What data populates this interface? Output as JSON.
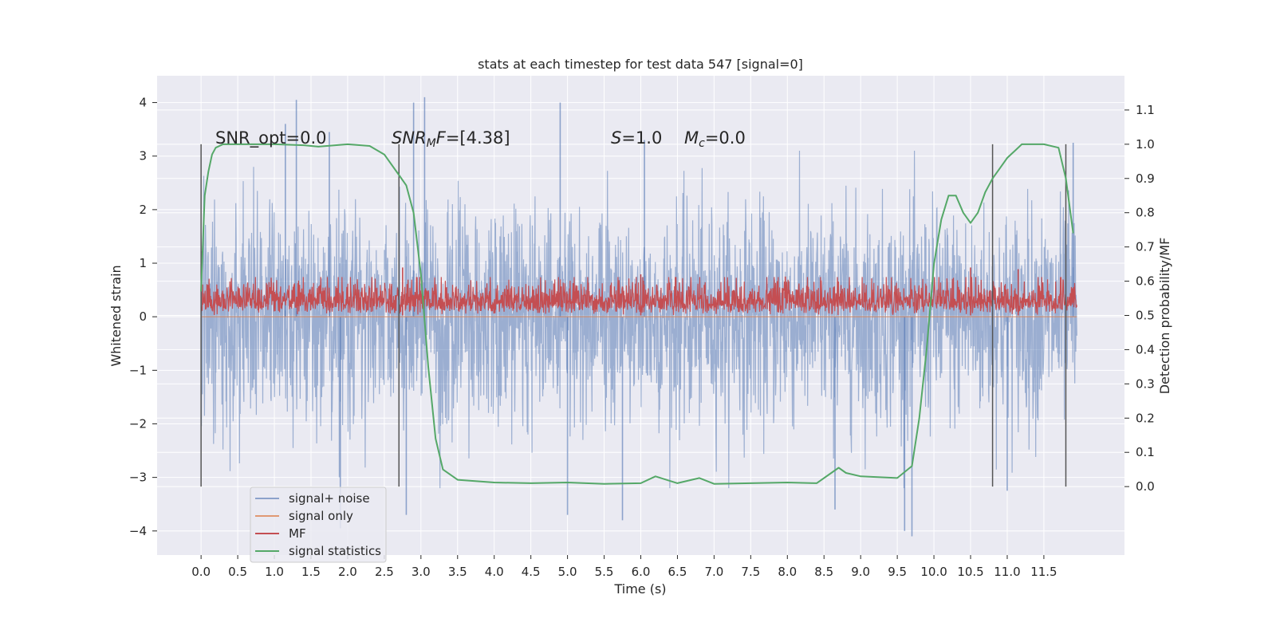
{
  "chart_data": {
    "type": "line",
    "title": "stats at each timestep for test data 547 [signal=0]",
    "xlabel": "Time (s)",
    "ylabel": "Whitened strain",
    "ylabel_right": "Detection probability/MF",
    "xlim": [
      -0.6,
      12.6
    ],
    "ylim": [
      -4.45,
      4.5
    ],
    "ylim_right": [
      -0.2,
      1.2
    ],
    "x_ticks": [
      0.0,
      0.5,
      1.0,
      1.5,
      2.0,
      2.5,
      3.0,
      3.5,
      4.0,
      4.5,
      5.0,
      5.5,
      6.0,
      6.5,
      7.0,
      7.5,
      8.0,
      8.5,
      9.0,
      9.5,
      10.0,
      10.5,
      11.0,
      11.5
    ],
    "x_tick_labels": [
      "0.0",
      "0.5",
      "1.0",
      "1.5",
      "2.0",
      "2.5",
      "3.0",
      "3.5",
      "4.0",
      "4.5",
      "5.0",
      "5.5",
      "6.0",
      "6.5",
      "7.0",
      "7.5",
      "8.0",
      "8.5",
      "9.0",
      "9.5",
      "10.0",
      "10.5",
      "11.0",
      "11.5"
    ],
    "y_ticks": [
      -4,
      -3,
      -2,
      -1,
      0,
      1,
      2,
      3,
      4
    ],
    "y_tick_labels": [
      "−4",
      "−3",
      "−2",
      "−1",
      "0",
      "1",
      "2",
      "3",
      "4"
    ],
    "y_right_ticks": [
      0.0,
      0.1,
      0.2,
      0.3,
      0.4,
      0.5,
      0.6,
      0.7,
      0.8,
      0.9,
      1.0,
      1.1
    ],
    "y_right_tick_labels": [
      "0.0",
      "0.1",
      "0.2",
      "0.3",
      "0.4",
      "0.5",
      "0.6",
      "0.7",
      "0.8",
      "0.9",
      "1.0",
      "1.1"
    ],
    "grid": true,
    "legend_position": "lower-left",
    "series": [
      {
        "name": "signal+ noise",
        "color": "#4c72b0",
        "axis": "left",
        "x_range": [
          0.0,
          11.95
        ],
        "typical_range": [
          -1.9,
          1.9
        ],
        "spikes": [
          {
            "x": 1.3,
            "y": 4.05
          },
          {
            "x": 2.9,
            "y": 4.0
          },
          {
            "x": 3.05,
            "y": 4.1
          },
          {
            "x": 4.9,
            "y": 4.0
          },
          {
            "x": 1.15,
            "y": 3.6
          },
          {
            "x": 1.75,
            "y": 3.45
          },
          {
            "x": 6.05,
            "y": 3.3
          },
          {
            "x": 11.9,
            "y": 3.25
          },
          {
            "x": 9.7,
            "y": -4.1
          },
          {
            "x": 9.6,
            "y": -4.0
          },
          {
            "x": 5.75,
            "y": -3.8
          },
          {
            "x": 1.9,
            "y": -3.95
          },
          {
            "x": 11.0,
            "y": -3.25
          },
          {
            "x": 8.65,
            "y": -3.6
          },
          {
            "x": 5.0,
            "y": -3.7
          },
          {
            "x": 2.8,
            "y": -3.7
          }
        ]
      },
      {
        "name": "signal only",
        "color": "#dd8452",
        "axis": "left",
        "x": [
          0.0,
          11.95
        ],
        "y": [
          0.0,
          0.0
        ]
      },
      {
        "name": "MF",
        "color": "#c44e52",
        "axis": "right",
        "x_range": [
          0.0,
          11.95
        ],
        "baseline": 0.5,
        "typical_range": [
          0.5,
          0.605
        ],
        "spikes": [
          {
            "x": 2.75,
            "y": 0.64
          },
          {
            "x": 10.5,
            "y": 0.64
          },
          {
            "x": 11.15,
            "y": 0.635
          },
          {
            "x": 6.0,
            "y": 0.62
          }
        ]
      },
      {
        "name": "signal statistics",
        "color": "#55a868",
        "axis": "right",
        "x": [
          0.0,
          0.05,
          0.1,
          0.15,
          0.2,
          0.3,
          0.6,
          1.0,
          1.4,
          1.6,
          2.0,
          2.3,
          2.5,
          2.7,
          2.8,
          2.9,
          3.0,
          3.1,
          3.2,
          3.3,
          3.5,
          4.0,
          4.5,
          5.0,
          5.5,
          6.0,
          6.2,
          6.5,
          6.8,
          7.0,
          7.5,
          8.0,
          8.4,
          8.6,
          8.7,
          8.8,
          9.0,
          9.5,
          9.7,
          9.8,
          9.9,
          10.0,
          10.1,
          10.2,
          10.3,
          10.4,
          10.5,
          10.6,
          10.7,
          10.8,
          10.9,
          11.0,
          11.2,
          11.5,
          11.7,
          11.8,
          11.9
        ],
        "y": [
          0.57,
          0.85,
          0.92,
          0.97,
          0.99,
          1.0,
          1.0,
          1.0,
          0.997,
          0.993,
          1.0,
          0.995,
          0.97,
          0.91,
          0.88,
          0.8,
          0.62,
          0.35,
          0.14,
          0.05,
          0.02,
          0.012,
          0.01,
          0.012,
          0.008,
          0.01,
          0.03,
          0.01,
          0.025,
          0.008,
          0.01,
          0.012,
          0.01,
          0.04,
          0.055,
          0.04,
          0.03,
          0.025,
          0.06,
          0.2,
          0.4,
          0.65,
          0.78,
          0.85,
          0.85,
          0.8,
          0.77,
          0.8,
          0.86,
          0.9,
          0.93,
          0.96,
          1.0,
          1.0,
          0.99,
          0.9,
          0.74
        ]
      }
    ],
    "vertical_lines": [
      0.0,
      2.7,
      10.8,
      11.8
    ],
    "annotations": [
      {
        "text": "SNR_opt=0.0",
        "x": 0.22,
        "y": 3.2
      },
      {
        "text": "SNR_MF=[4.38]",
        "x": 2.62,
        "y": 3.2
      },
      {
        "text": "S=1.0",
        "x": 5.6,
        "y": 3.2
      },
      {
        "text": "M_c=0.0",
        "x": 6.6,
        "y": 3.2
      }
    ]
  }
}
